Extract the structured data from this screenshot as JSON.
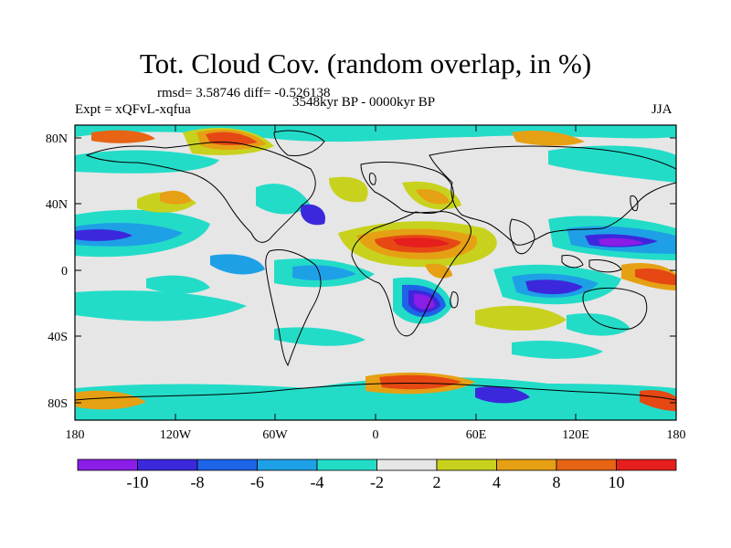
{
  "figure": {
    "title": "Tot. Cloud Cov. (random overlap, in %)",
    "stats": "rmsd= 3.58746 diff= -0.526138",
    "period": "3548kyr BP - 0000kyr BP",
    "experiment": "Expt = xQFvL-xqfua",
    "season": "JJA"
  },
  "axes": {
    "x_ticks": [
      "180",
      "120W",
      "60W",
      "0",
      "60E",
      "120E",
      "180"
    ],
    "y_ticks": [
      "80N",
      "40N",
      "0",
      "40S",
      "80S"
    ]
  },
  "colorbar": {
    "labels": [
      "-10",
      "-8",
      "-6",
      "-4",
      "-2",
      "2",
      "4",
      "8",
      "10"
    ],
    "colors": [
      "#8a1ee6",
      "#3c28dc",
      "#1e64e6",
      "#1ea0e6",
      "#23dcc8",
      "#e6e6e6",
      "#c8d21e",
      "#e6a014",
      "#e66414",
      "#e61e1e"
    ]
  },
  "chart_data": {
    "type": "heatmap",
    "projection": "equirectangular",
    "xlim": [
      -180,
      180
    ],
    "ylim": [
      -90,
      90
    ],
    "levels": [
      -10,
      -8,
      -6,
      -4,
      -2,
      2,
      4,
      8,
      10
    ],
    "units": "%",
    "background_color": "#e6e6e6"
  }
}
